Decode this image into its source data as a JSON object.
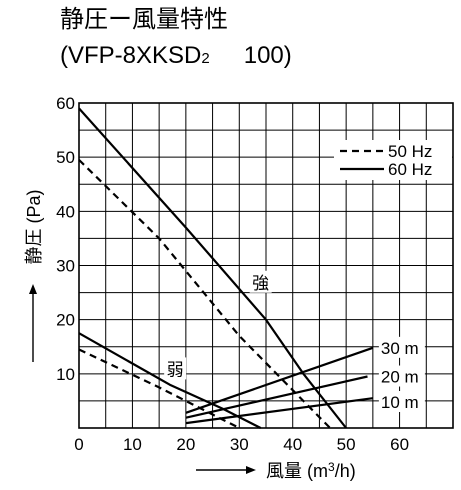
{
  "chart_data": {
    "type": "line",
    "title": "静圧ー風量特性",
    "subtitle": {
      "pre": "(VFP-8XKSD",
      "sub": "2",
      "post": "100)"
    },
    "xlabel": {
      "pre": "風量 (m",
      "sup": "3",
      "post": "/h)"
    },
    "ylabel": "静圧 (Pa)",
    "xlim": [
      0,
      70
    ],
    "ylim": [
      0,
      60
    ],
    "x_ticks": [
      "0",
      "10",
      "20",
      "30",
      "40",
      "50",
      "60"
    ],
    "y_ticks": [
      "10",
      "20",
      "30",
      "40",
      "50",
      "60"
    ],
    "grid": true,
    "legend_position": "top-right",
    "legend": [
      {
        "label": "50 Hz",
        "style": "dashed"
      },
      {
        "label": "60 Hz",
        "style": "solid"
      }
    ],
    "series": [
      {
        "freq": "60 Hz",
        "setting": "強",
        "style": "solid",
        "points": [
          [
            0,
            59
          ],
          [
            20,
            37
          ],
          [
            35,
            20
          ],
          [
            42,
            10
          ],
          [
            50,
            0
          ]
        ]
      },
      {
        "freq": "50 Hz",
        "setting": "強",
        "style": "dashed",
        "points": [
          [
            0,
            49.5
          ],
          [
            15,
            35
          ],
          [
            30,
            17
          ],
          [
            38,
            9
          ],
          [
            47,
            0
          ]
        ]
      },
      {
        "freq": "60 Hz",
        "setting": "弱",
        "style": "solid",
        "points": [
          [
            0,
            17.5
          ],
          [
            17,
            8
          ],
          [
            27,
            3.5
          ],
          [
            34,
            0
          ]
        ]
      },
      {
        "freq": "50 Hz",
        "setting": "弱",
        "style": "dashed",
        "points": [
          [
            0,
            14.5
          ],
          [
            15,
            7.5
          ],
          [
            25,
            2.5
          ],
          [
            30,
            0
          ]
        ]
      },
      {
        "name": "30 m",
        "style": "solid",
        "points": [
          [
            20,
            2.8
          ],
          [
            55,
            14.8
          ]
        ]
      },
      {
        "name": "20 m",
        "style": "solid",
        "points": [
          [
            20,
            1.9
          ],
          [
            54,
            9.5
          ]
        ]
      },
      {
        "name": "10 m",
        "style": "solid",
        "points": [
          [
            20,
            0.9
          ],
          [
            55,
            5.5
          ]
        ]
      }
    ],
    "annotations": [
      {
        "text": "強",
        "x": 34,
        "y": 27
      },
      {
        "text": "弱",
        "x": 18,
        "y": 11
      }
    ],
    "line_labels": [
      "30 m",
      "20 m",
      "10 m"
    ]
  }
}
